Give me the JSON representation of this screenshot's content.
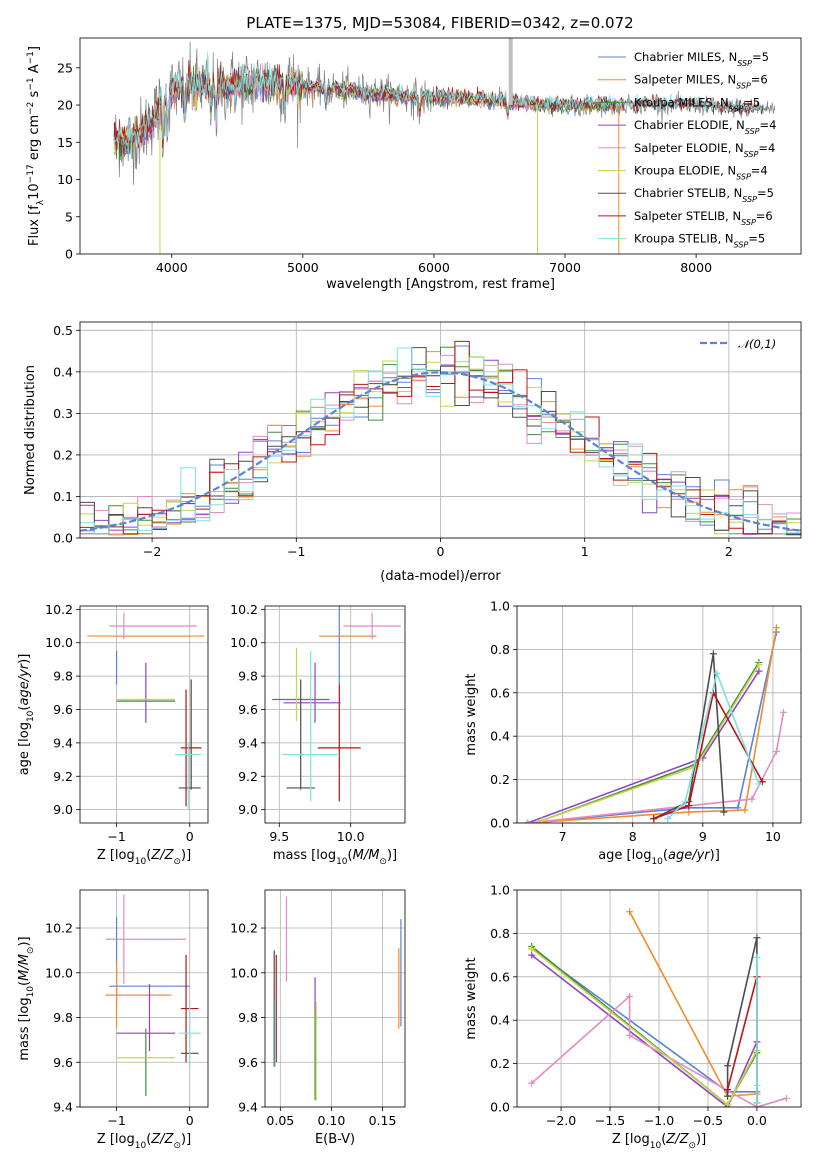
{
  "title": "PLATE=1375, MJD=53084, FIBERID=0342, z=0.072",
  "colors": {
    "Chabrier MILES": "#5b82d6",
    "Salpeter MILES": "#f28d2a",
    "Kroupa MILES": "#3d8f3d",
    "Chabrier ELODIE": "#8e44c8",
    "Salpeter ELODIE": "#e58bc4",
    "Kroupa ELODIE": "#c8d44a",
    "Chabrier STELIB": "#4d4d4d",
    "Salpeter STELIB": "#b81414",
    "Kroupa STELIB": "#7fe0e0",
    "data": "#808080",
    "gauss": "#5b82d6"
  },
  "chart_data": [
    {
      "id": "spectrum",
      "type": "line",
      "xlabel": "wavelength [Angstrom, rest frame]",
      "ylabel": "Flux [f_λ 10^-17 erg cm^-2 s^-1 A^-1]",
      "xlim": [
        3300,
        8800
      ],
      "ylim": [
        0,
        29
      ],
      "xticks": [
        4000,
        5000,
        6000,
        7000,
        8000
      ],
      "yticks": [
        0,
        5,
        10,
        15,
        20,
        25
      ],
      "legend": "top-right",
      "legend_entries": [
        "Chabrier MILES, N_SSP=5",
        "Salpeter MILES, N_SSP=6",
        "Kroupa MILES, N_SSP=5",
        "Chabrier ELODIE, N_SSP=4",
        "Salpeter ELODIE, N_SSP=4",
        "Kroupa ELODIE, N_SSP=4",
        "Chabrier STELIB, N_SSP=5",
        "Salpeter STELIB, N_SSP=6",
        "Kroupa STELIB, N_SSP=5"
      ],
      "continuum": [
        [
          3550,
          15.5
        ],
        [
          3650,
          15.0
        ],
        [
          3750,
          16.0
        ],
        [
          3850,
          18.0
        ],
        [
          3950,
          21.0
        ],
        [
          4050,
          22.5
        ],
        [
          4200,
          22.5
        ],
        [
          4400,
          22.5
        ],
        [
          4600,
          23.0
        ],
        [
          4800,
          23.0
        ],
        [
          5000,
          22.5
        ],
        [
          5300,
          22.0
        ],
        [
          5600,
          21.5
        ],
        [
          5900,
          21.0
        ],
        [
          6200,
          21.0
        ],
        [
          6500,
          20.5
        ],
        [
          6800,
          20.0
        ],
        [
          7100,
          20.0
        ],
        [
          7400,
          20.0
        ],
        [
          7700,
          20.0
        ],
        [
          8000,
          20.0
        ],
        [
          8300,
          19.5
        ],
        [
          8500,
          19.5
        ]
      ]
    },
    {
      "id": "residuals",
      "type": "step",
      "xlabel": "(data-model)/error",
      "ylabel": "Normed distribution",
      "xlim": [
        -2.5,
        2.5
      ],
      "ylim": [
        0,
        0.52
      ],
      "xticks": [
        -2,
        -1,
        0,
        1,
        2
      ],
      "yticks": [
        0.0,
        0.1,
        0.2,
        0.3,
        0.4,
        0.5
      ],
      "legend": "top-right",
      "legend_label": "N(0,1)",
      "bin_width": 0.1
    },
    {
      "id": "age-vs-Z",
      "type": "errorbar",
      "xlabel": "Z [log10(Z/Z☉)]",
      "ylabel": "age [log10(age/yr)]",
      "xlim": [
        -1.5,
        0.25
      ],
      "ylim": [
        8.92,
        10.22
      ],
      "xticks": [
        -1,
        0
      ],
      "yticks": [
        9.0,
        9.2,
        9.4,
        9.6,
        9.8,
        10.0,
        10.2
      ],
      "points": [
        {
          "model": "Chabrier MILES",
          "x": -0.5,
          "xerr": 0.5,
          "y": 10.04,
          "yerr": 0.0
        },
        {
          "model": "Chabrier MILES",
          "x": -1.0,
          "xerr": 0.0,
          "y": 9.85,
          "yerr": 0.1
        },
        {
          "model": "Salpeter MILES",
          "x": -0.6,
          "xerr": 0.8,
          "y": 10.04,
          "yerr": 0.0
        },
        {
          "model": "Kroupa MILES",
          "x": -0.6,
          "xerr": 0.4,
          "y": 9.65,
          "yerr": 0.0
        },
        {
          "model": "Chabrier ELODIE",
          "x": -0.6,
          "xerr": 0.0,
          "y": 9.7,
          "yerr": 0.18
        },
        {
          "model": "Salpeter ELODIE",
          "x": -0.9,
          "xerr": 0.0,
          "y": 10.1,
          "yerr": 0.08
        },
        {
          "model": "Salpeter ELODIE",
          "x": -0.5,
          "xerr": 0.6,
          "y": 10.1,
          "yerr": 0.0
        },
        {
          "model": "Kroupa ELODIE",
          "x": -0.6,
          "xerr": 0.4,
          "y": 9.66,
          "yerr": 0.0
        },
        {
          "model": "Chabrier STELIB",
          "x": 0.0,
          "xerr": 0.15,
          "y": 9.13,
          "yerr": 0.0
        },
        {
          "model": "Chabrier STELIB",
          "x": 0.02,
          "xerr": 0.0,
          "y": 9.45,
          "yerr": 0.33
        },
        {
          "model": "Salpeter STELIB",
          "x": 0.02,
          "xerr": 0.14,
          "y": 9.37,
          "yerr": 0.0
        },
        {
          "model": "Salpeter STELIB",
          "x": -0.05,
          "xerr": 0.0,
          "y": 9.37,
          "yerr": 0.35
        },
        {
          "model": "Kroupa STELIB",
          "x": -0.02,
          "xerr": 0.18,
          "y": 9.33,
          "yerr": 0.0
        },
        {
          "model": "Kroupa STELIB",
          "x": -0.02,
          "xerr": 0.0,
          "y": 9.2,
          "yerr": 0.2
        }
      ]
    },
    {
      "id": "age-vs-mass",
      "type": "errorbar",
      "xlabel": "mass [log10(M/M☉)]",
      "ylabel": "",
      "xlim": [
        9.4,
        10.38
      ],
      "ylim": [
        8.92,
        10.22
      ],
      "xticks": [
        9.5,
        10.0
      ],
      "yticks": [
        9.0,
        9.2,
        9.4,
        9.6,
        9.8,
        10.0,
        10.2
      ],
      "points": [
        {
          "model": "Chabrier MILES",
          "x": 9.98,
          "xerr": 0.2,
          "y": 10.04,
          "yerr": 0.0
        },
        {
          "model": "Chabrier MILES",
          "x": 9.92,
          "xerr": 0.0,
          "y": 10.0,
          "yerr": 0.25
        },
        {
          "model": "Salpeter MILES",
          "x": 9.98,
          "xerr": 0.2,
          "y": 10.04,
          "yerr": 0.0
        },
        {
          "model": "Kroupa MILES",
          "x": 9.65,
          "xerr": 0.2,
          "y": 9.66,
          "yerr": 0.0
        },
        {
          "model": "Chabrier ELODIE",
          "x": 9.75,
          "xerr": 0.0,
          "y": 9.7,
          "yerr": 0.18
        },
        {
          "model": "Chabrier ELODIE",
          "x": 9.73,
          "xerr": 0.2,
          "y": 9.64,
          "yerr": 0.0
        },
        {
          "model": "Salpeter ELODIE",
          "x": 10.15,
          "xerr": 0.0,
          "y": 10.1,
          "yerr": 0.08
        },
        {
          "model": "Salpeter ELODIE",
          "x": 10.15,
          "xerr": 0.2,
          "y": 10.1,
          "yerr": 0.0
        },
        {
          "model": "Kroupa ELODIE",
          "x": 9.62,
          "xerr": 0.0,
          "y": 9.75,
          "yerr": 0.22
        },
        {
          "model": "Chabrier STELIB",
          "x": 9.65,
          "xerr": 0.0,
          "y": 9.45,
          "yerr": 0.33
        },
        {
          "model": "Chabrier STELIB",
          "x": 9.65,
          "xerr": 0.1,
          "y": 9.13,
          "yerr": 0.0
        },
        {
          "model": "Salpeter STELIB",
          "x": 9.92,
          "xerr": 0.0,
          "y": 9.4,
          "yerr": 0.35
        },
        {
          "model": "Salpeter STELIB",
          "x": 9.92,
          "xerr": 0.15,
          "y": 9.37,
          "yerr": 0.0
        },
        {
          "model": "Kroupa STELIB",
          "x": 9.72,
          "xerr": 0.0,
          "y": 9.5,
          "yerr": 0.45
        },
        {
          "model": "Kroupa STELIB",
          "x": 9.72,
          "xerr": 0.2,
          "y": 9.33,
          "yerr": 0.0
        }
      ]
    },
    {
      "id": "weight-vs-age",
      "type": "line",
      "xlabel": "age [log10(age/yr)]",
      "ylabel": "mass weight",
      "xlim": [
        6.35,
        10.4
      ],
      "ylim": [
        0,
        1.0
      ],
      "xticks": [
        7,
        8,
        9,
        10
      ],
      "yticks": [
        0.0,
        0.2,
        0.4,
        0.6,
        0.8,
        1.0
      ],
      "series": [
        {
          "model": "Chabrier MILES",
          "points": [
            [
              6.5,
              0.0
            ],
            [
              8.8,
              0.07
            ],
            [
              9.5,
              0.07
            ],
            [
              10.05,
              0.88
            ]
          ]
        },
        {
          "model": "Salpeter MILES",
          "points": [
            [
              6.5,
              0.0
            ],
            [
              8.8,
              0.05
            ],
            [
              9.6,
              0.06
            ],
            [
              10.05,
              0.9
            ]
          ]
        },
        {
          "model": "Kroupa MILES",
          "points": [
            [
              6.7,
              0.01
            ],
            [
              8.9,
              0.27
            ],
            [
              9.8,
              0.74
            ]
          ]
        },
        {
          "model": "Chabrier ELODIE",
          "points": [
            [
              6.5,
              0.0
            ],
            [
              9.0,
              0.3
            ],
            [
              9.8,
              0.7
            ]
          ]
        },
        {
          "model": "Salpeter ELODIE",
          "points": [
            [
              6.5,
              0.0
            ],
            [
              9.7,
              0.11
            ],
            [
              10.05,
              0.33
            ],
            [
              10.15,
              0.51
            ]
          ]
        },
        {
          "model": "Kroupa ELODIE",
          "points": [
            [
              6.7,
              0.01
            ],
            [
              8.9,
              0.26
            ],
            [
              9.8,
              0.73
            ]
          ]
        },
        {
          "model": "Chabrier STELIB",
          "points": [
            [
              8.3,
              0.02
            ],
            [
              8.8,
              0.1
            ],
            [
              9.15,
              0.78
            ],
            [
              9.3,
              0.05
            ]
          ]
        },
        {
          "model": "Salpeter STELIB",
          "points": [
            [
              8.3,
              0.02
            ],
            [
              8.8,
              0.08
            ],
            [
              9.15,
              0.6
            ],
            [
              9.85,
              0.19
            ]
          ]
        },
        {
          "model": "Kroupa STELIB",
          "points": [
            [
              8.5,
              0.02
            ],
            [
              8.75,
              0.1
            ],
            [
              9.2,
              0.69
            ],
            [
              9.8,
              0.18
            ]
          ]
        }
      ]
    },
    {
      "id": "mass-vs-Z",
      "type": "errorbar",
      "xlabel": "Z [log10(Z/Z☉)]",
      "ylabel": "mass [log10(M/M☉)]",
      "xlim": [
        -1.5,
        0.25
      ],
      "ylim": [
        9.4,
        10.37
      ],
      "xticks": [
        -1,
        0
      ],
      "yticks": [
        9.4,
        9.6,
        9.8,
        10.0,
        10.2
      ],
      "points": [
        {
          "model": "Chabrier MILES",
          "x": -0.55,
          "xerr": 0.55,
          "y": 9.94,
          "yerr": 0.0
        },
        {
          "model": "Chabrier MILES",
          "x": -1.0,
          "xerr": 0.0,
          "y": 10.05,
          "yerr": 0.2
        },
        {
          "model": "Salpeter MILES",
          "x": -0.7,
          "xerr": 0.45,
          "y": 9.9,
          "yerr": 0.0
        },
        {
          "model": "Salpeter MILES",
          "x": -1.0,
          "xerr": 0.0,
          "y": 9.9,
          "yerr": 0.15
        },
        {
          "model": "Kroupa MILES",
          "x": -0.6,
          "xerr": 0.0,
          "y": 9.6,
          "yerr": 0.15
        },
        {
          "model": "Chabrier ELODIE",
          "x": -0.55,
          "xerr": 0.0,
          "y": 9.8,
          "yerr": 0.15
        },
        {
          "model": "Chabrier ELODIE",
          "x": -0.6,
          "xerr": 0.4,
          "y": 9.73,
          "yerr": 0.0
        },
        {
          "model": "Salpeter ELODIE",
          "x": -0.6,
          "xerr": 0.55,
          "y": 10.15,
          "yerr": 0.0
        },
        {
          "model": "Salpeter ELODIE",
          "x": -0.9,
          "xerr": 0.0,
          "y": 10.15,
          "yerr": 0.2
        },
        {
          "model": "Kroupa ELODIE",
          "x": -0.6,
          "xerr": 0.4,
          "y": 9.62,
          "yerr": 0.0
        },
        {
          "model": "Chabrier STELIB",
          "x": 0.0,
          "xerr": 0.12,
          "y": 9.64,
          "yerr": 0.0
        },
        {
          "model": "Salpeter STELIB",
          "x": -0.05,
          "xerr": 0.0,
          "y": 9.84,
          "yerr": 0.24
        },
        {
          "model": "Salpeter STELIB",
          "x": 0.0,
          "xerr": 0.12,
          "y": 9.84,
          "yerr": 0.0
        },
        {
          "model": "Kroupa STELIB",
          "x": 0.0,
          "xerr": 0.15,
          "y": 9.73,
          "yerr": 0.0
        },
        {
          "model": "Kroupa STELIB",
          "x": 0.0,
          "xerr": 0.0,
          "y": 9.73,
          "yerr": 0.15
        }
      ]
    },
    {
      "id": "mass-vs-EBV",
      "type": "errorbar",
      "xlabel": "E(B-V)",
      "ylabel": "",
      "xlim": [
        0.035,
        0.172
      ],
      "ylim": [
        9.4,
        10.37
      ],
      "xticks": [
        0.05,
        0.1,
        0.15
      ],
      "yticks": [
        9.4,
        9.6,
        9.8,
        10.0,
        10.2
      ],
      "points": [
        {
          "model": "Chabrier MILES",
          "x": 0.168,
          "xerr": 0.0,
          "y": 10.0,
          "yerr": 0.24
        },
        {
          "model": "Salpeter MILES",
          "x": 0.166,
          "xerr": 0.0,
          "y": 9.93,
          "yerr": 0.18
        },
        {
          "model": "Kroupa MILES",
          "x": 0.084,
          "xerr": 0.0,
          "y": 9.65,
          "yerr": 0.22
        },
        {
          "model": "Chabrier ELODIE",
          "x": 0.084,
          "xerr": 0.0,
          "y": 9.9,
          "yerr": 0.08
        },
        {
          "model": "Salpeter ELODIE",
          "x": 0.056,
          "xerr": 0.0,
          "y": 10.15,
          "yerr": 0.19
        },
        {
          "model": "Kroupa ELODIE",
          "x": 0.085,
          "xerr": 0.0,
          "y": 9.65,
          "yerr": 0.22
        },
        {
          "model": "Chabrier STELIB",
          "x": 0.044,
          "xerr": 0.0,
          "y": 9.84,
          "yerr": 0.26
        },
        {
          "model": "Salpeter STELIB",
          "x": 0.046,
          "xerr": 0.0,
          "y": 9.84,
          "yerr": 0.24
        },
        {
          "model": "Kroupa STELIB",
          "x": 0.045,
          "xerr": 0.0,
          "y": 9.73,
          "yerr": 0.15
        }
      ]
    },
    {
      "id": "weight-vs-Z",
      "type": "line",
      "xlabel": "Z [log10(Z/Z☉)]",
      "ylabel": "mass weight",
      "xlim": [
        -2.45,
        0.45
      ],
      "ylim": [
        0,
        1.0
      ],
      "xticks": [
        -2.0,
        -1.5,
        -1.0,
        -0.5,
        0.0
      ],
      "yticks": [
        0.0,
        0.2,
        0.4,
        0.6,
        0.8,
        1.0
      ],
      "series": [
        {
          "model": "Chabrier MILES",
          "points": [
            [
              -2.3,
              0.73
            ],
            [
              -0.3,
              0.07
            ],
            [
              0.0,
              0.07
            ]
          ]
        },
        {
          "model": "Salpeter MILES",
          "points": [
            [
              -1.3,
              0.9
            ],
            [
              -0.3,
              0.05
            ],
            [
              0.0,
              0.06
            ]
          ]
        },
        {
          "model": "Kroupa MILES",
          "points": [
            [
              -2.3,
              0.74
            ],
            [
              -0.3,
              0.01
            ],
            [
              0.0,
              0.25
            ]
          ]
        },
        {
          "model": "Chabrier ELODIE",
          "points": [
            [
              -2.3,
              0.7
            ],
            [
              -0.3,
              0.0
            ],
            [
              0.0,
              0.3
            ]
          ]
        },
        {
          "model": "Salpeter ELODIE",
          "points": [
            [
              -2.3,
              0.11
            ],
            [
              -1.3,
              0.51
            ],
            [
              -1.3,
              0.33
            ],
            [
              0.0,
              0.0
            ],
            [
              0.3,
              0.04
            ]
          ]
        },
        {
          "model": "Kroupa ELODIE",
          "points": [
            [
              -2.3,
              0.73
            ],
            [
              -0.3,
              0.01
            ],
            [
              0.0,
              0.26
            ]
          ]
        },
        {
          "model": "Chabrier STELIB",
          "points": [
            [
              -0.3,
              0.05
            ],
            [
              -0.3,
              0.19
            ],
            [
              0.0,
              0.78
            ],
            [
              0.0,
              0.02
            ]
          ]
        },
        {
          "model": "Salpeter STELIB",
          "points": [
            [
              -0.3,
              0.08
            ],
            [
              0.0,
              0.6
            ],
            [
              0.0,
              0.02
            ]
          ]
        },
        {
          "model": "Kroupa STELIB",
          "points": [
            [
              0.0,
              0.69
            ],
            [
              0.0,
              0.02
            ],
            [
              0.0,
              0.1
            ]
          ]
        }
      ]
    }
  ]
}
